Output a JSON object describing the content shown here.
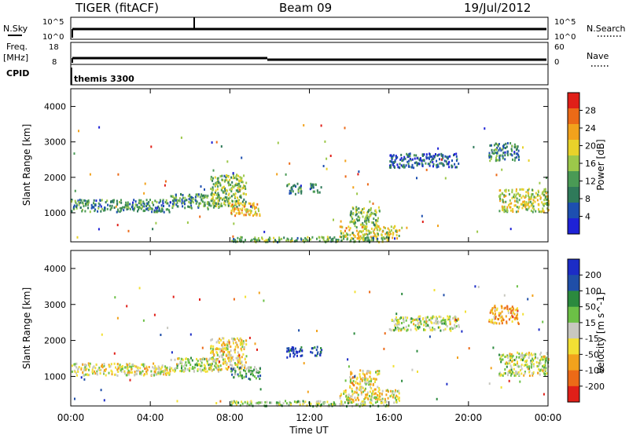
{
  "header": {
    "title": "TIGER (fitACF)",
    "beam": "Beam 09",
    "date": "19/Jul/2012"
  },
  "panels": {
    "nsky_label": "N.Sky",
    "nsky_ticks": [
      "10^5",
      "10^0"
    ],
    "nsearch_label": "N.Search",
    "nsearch_ticks": [
      "10^5",
      "10^0"
    ],
    "freq_label": "Freq.",
    "freq_unit": "[MHz]",
    "freq_ticks": [
      "18",
      "8"
    ],
    "nave_label": "Nave",
    "nave_ticks": [
      "60",
      "0"
    ],
    "cpid_label": "CPID",
    "cpid_value": "themis 3300"
  },
  "colors": {
    "power": [
      "#1e22d6",
      "#1d4fb0",
      "#2f7a5a",
      "#4a9a55",
      "#9cc84a",
      "#e8d22a",
      "#f2a21c",
      "#ec6a17",
      "#e01f18"
    ],
    "velocity": [
      "#1c2cc6",
      "#1f4ea8",
      "#2b8a3e",
      "#6cc046",
      "#c8c8c0",
      "#f2e034",
      "#f2a21c",
      "#ec6a17",
      "#e01f18"
    ]
  },
  "chart_data": [
    {
      "type": "heatmap",
      "name": "power",
      "xlabel": "Time UT",
      "ylabel": "Slant Range [km]",
      "xlim": [
        0,
        24
      ],
      "ylim": [
        180,
        4500
      ],
      "x_ticks": [
        "00:00",
        "04:00",
        "08:00",
        "12:00",
        "16:00",
        "20:00",
        "00:00"
      ],
      "y_ticks": [
        "1000",
        "2000",
        "3000",
        "4000"
      ],
      "colorbar_label": "Power [dB]",
      "colorbar_ticks": [
        "4",
        "8",
        "12",
        "16",
        "20",
        "24",
        "28"
      ],
      "regions": [
        {
          "t": [
            0.0,
            5.0
          ],
          "r": [
            1050,
            1400
          ],
          "level": 0.3
        },
        {
          "t": [
            5.0,
            7.5
          ],
          "r": [
            1150,
            1550
          ],
          "level": 0.35
        },
        {
          "t": [
            7.0,
            8.8
          ],
          "r": [
            1200,
            2100
          ],
          "level": 0.45
        },
        {
          "t": [
            8.0,
            9.5
          ],
          "r": [
            950,
            1300
          ],
          "level": 0.65
        },
        {
          "t": [
            10.8,
            11.6
          ],
          "r": [
            1550,
            1850
          ],
          "level": 0.3
        },
        {
          "t": [
            12.0,
            12.6
          ],
          "r": [
            1600,
            1850
          ],
          "level": 0.25
        },
        {
          "t": [
            14.0,
            15.5
          ],
          "r": [
            650,
            1200
          ],
          "level": 0.45
        },
        {
          "t": [
            13.5,
            16.5
          ],
          "r": [
            300,
            650
          ],
          "level": 0.6
        },
        {
          "t": [
            16.0,
            19.5
          ],
          "r": [
            2300,
            2700
          ],
          "level": 0.2
        },
        {
          "t": [
            21.5,
            24.0
          ],
          "r": [
            1050,
            1700
          ],
          "level": 0.55
        },
        {
          "t": [
            21.0,
            22.5
          ],
          "r": [
            2500,
            3000
          ],
          "level": 0.3
        },
        {
          "t": [
            8.0,
            16.0
          ],
          "r": [
            200,
            350
          ],
          "level": 0.4
        }
      ]
    },
    {
      "type": "heatmap",
      "name": "velocity",
      "xlabel": "Time UT",
      "ylabel": "Slant Range [km]",
      "xlim": [
        0,
        24
      ],
      "ylim": [
        180,
        4500
      ],
      "x_ticks": [
        "00:00",
        "04:00",
        "08:00",
        "12:00",
        "16:00",
        "20:00",
        "00:00"
      ],
      "y_ticks": [
        "1000",
        "2000",
        "3000",
        "4000"
      ],
      "colorbar_label": "Velocity [m s^-1]",
      "colorbar_ticks": [
        "200",
        "100",
        "50",
        "15",
        "-15",
        "-50",
        "-100",
        "-200"
      ],
      "regions": [
        {
          "t": [
            0.0,
            5.0
          ],
          "r": [
            1050,
            1400
          ],
          "level": 0.55
        },
        {
          "t": [
            5.0,
            7.5
          ],
          "r": [
            1150,
            1550
          ],
          "level": 0.5
        },
        {
          "t": [
            7.0,
            8.8
          ],
          "r": [
            1200,
            2100
          ],
          "level": 0.6
        },
        {
          "t": [
            8.0,
            9.5
          ],
          "r": [
            950,
            1300
          ],
          "level": 0.35
        },
        {
          "t": [
            10.8,
            11.6
          ],
          "r": [
            1550,
            1850
          ],
          "level": 0.05
        },
        {
          "t": [
            12.0,
            12.6
          ],
          "r": [
            1600,
            1850
          ],
          "level": 0.1
        },
        {
          "t": [
            14.0,
            15.5
          ],
          "r": [
            650,
            1200
          ],
          "level": 0.6
        },
        {
          "t": [
            13.5,
            16.5
          ],
          "r": [
            300,
            650
          ],
          "level": 0.55
        },
        {
          "t": [
            16.0,
            19.5
          ],
          "r": [
            2300,
            2700
          ],
          "level": 0.5
        },
        {
          "t": [
            21.5,
            24.0
          ],
          "r": [
            1050,
            1700
          ],
          "level": 0.5
        },
        {
          "t": [
            21.0,
            22.5
          ],
          "r": [
            2500,
            3000
          ],
          "level": 0.7
        },
        {
          "t": [
            8.0,
            16.0
          ],
          "r": [
            200,
            350
          ],
          "level": 0.45
        }
      ]
    }
  ]
}
